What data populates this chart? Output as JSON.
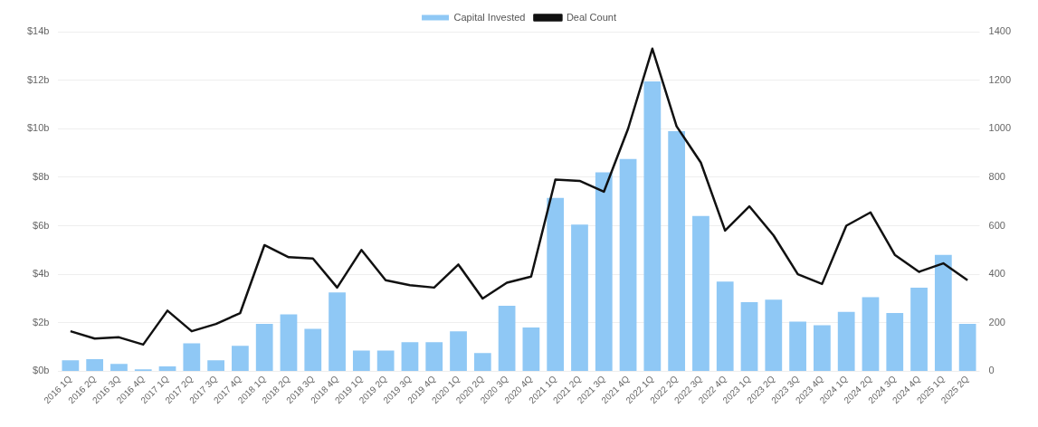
{
  "chart_data": {
    "type": "bar",
    "categories": [
      "2016 1Q",
      "2016 2Q",
      "2016 3Q",
      "2016 4Q",
      "2017 1Q",
      "2017 2Q",
      "2017 3Q",
      "2017 4Q",
      "2018 1Q",
      "2018 2Q",
      "2018 3Q",
      "2018 4Q",
      "2019 1Q",
      "2019 2Q",
      "2019 3Q",
      "2019 4Q",
      "2020 1Q",
      "2020 2Q",
      "2020 3Q",
      "2020 4Q",
      "2021 1Q",
      "2021 2Q",
      "2021 3Q",
      "2021 4Q",
      "2022 1Q",
      "2022 2Q",
      "2022 3Q",
      "2022 4Q",
      "2023 1Q",
      "2023 2Q",
      "2023 3Q",
      "2023 4Q",
      "2024 1Q",
      "2024 2Q",
      "2024 3Q",
      "2024 4Q",
      "2025 1Q",
      "2025 2Q"
    ],
    "series": [
      {
        "name": "Capital Invested",
        "color": "#8fc8f5",
        "values": [
          0.45,
          0.5,
          0.3,
          0.08,
          0.2,
          1.15,
          0.45,
          1.05,
          1.95,
          2.35,
          1.75,
          3.25,
          0.85,
          0.85,
          1.2,
          1.2,
          1.65,
          0.75,
          2.7,
          1.8,
          7.15,
          6.05,
          8.2,
          8.75,
          11.95,
          9.9,
          6.4,
          3.7,
          2.85,
          2.95,
          2.05,
          1.9,
          2.45,
          3.05,
          2.4,
          3.45,
          4.8,
          1.95
        ]
      },
      {
        "name": "Deal Count",
        "type": "line",
        "axis": "y2",
        "color": "#111111",
        "values": [
          165,
          135,
          140,
          110,
          250,
          165,
          195,
          240,
          520,
          470,
          465,
          345,
          500,
          375,
          355,
          345,
          440,
          300,
          365,
          390,
          790,
          785,
          740,
          1000,
          1330,
          1010,
          860,
          580,
          680,
          560,
          400,
          360,
          600,
          655,
          480,
          410,
          445,
          375
        ]
      }
    ],
    "ylim": [
      0,
      14
    ],
    "yticks": [
      {
        "value": 0,
        "label": "$0b"
      },
      {
        "value": 2,
        "label": "$2b"
      },
      {
        "value": 4,
        "label": "$4b"
      },
      {
        "value": 6,
        "label": "$6b"
      },
      {
        "value": 8,
        "label": "$8b"
      },
      {
        "value": 10,
        "label": "$10b"
      },
      {
        "value": 12,
        "label": "$12b"
      },
      {
        "value": 14,
        "label": "$14b"
      }
    ],
    "y2lim": [
      0,
      1400
    ],
    "y2ticks": [
      0,
      200,
      400,
      600,
      800,
      1000,
      1200,
      1400
    ],
    "grid": "y",
    "legend": "top",
    "marker": "none",
    "line_style": "solid"
  }
}
